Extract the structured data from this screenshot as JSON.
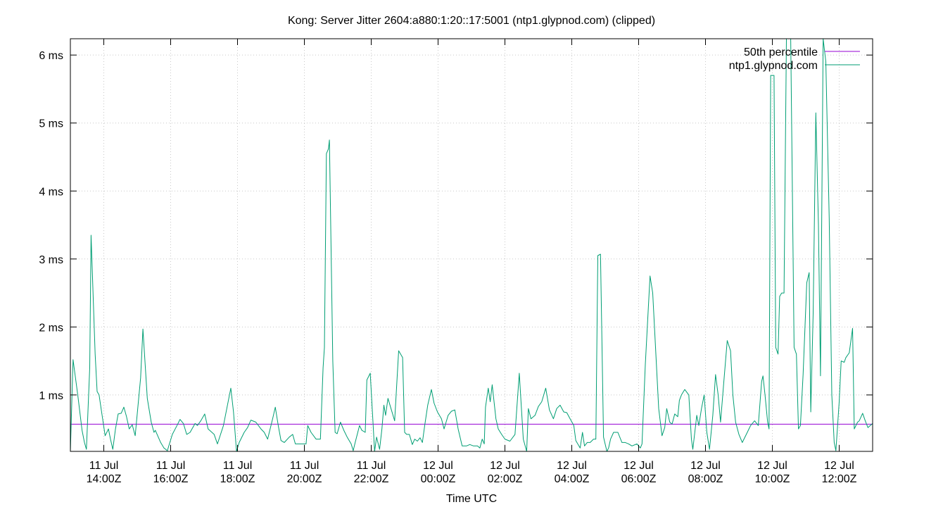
{
  "colors": {
    "median": "#9400d3",
    "series": "#009e73",
    "grid": "#c8c8c8",
    "axis": "#000000"
  },
  "chart_data": {
    "type": "line",
    "title": "Kong: Server Jitter 2604:a880:1:20::17:5001 (ntp1.glypnod.com) (clipped)",
    "xlabel": "Time UTC",
    "ylabel": "",
    "x_unit": "hours since 11 Jul 13:00Z",
    "xlim": [
      0,
      24
    ],
    "ylim": [
      0.17,
      6.24
    ],
    "grid": true,
    "legend_position": "top-right",
    "y_ticks": [
      {
        "value": 1,
        "label": "1 ms"
      },
      {
        "value": 2,
        "label": "2 ms"
      },
      {
        "value": 3,
        "label": "3 ms"
      },
      {
        "value": 4,
        "label": "4 ms"
      },
      {
        "value": 5,
        "label": "5 ms"
      },
      {
        "value": 6,
        "label": "6 ms"
      }
    ],
    "x_ticks": [
      {
        "value": 1,
        "line1": "11 Jul",
        "line2": "14:00Z"
      },
      {
        "value": 3,
        "line1": "11 Jul",
        "line2": "16:00Z"
      },
      {
        "value": 5,
        "line1": "11 Jul",
        "line2": "18:00Z"
      },
      {
        "value": 7,
        "line1": "11 Jul",
        "line2": "20:00Z"
      },
      {
        "value": 9,
        "line1": "11 Jul",
        "line2": "22:00Z"
      },
      {
        "value": 11,
        "line1": "12 Jul",
        "line2": "00:00Z"
      },
      {
        "value": 13,
        "line1": "12 Jul",
        "line2": "02:00Z"
      },
      {
        "value": 15,
        "line1": "12 Jul",
        "line2": "04:00Z"
      },
      {
        "value": 17,
        "line1": "12 Jul",
        "line2": "06:00Z"
      },
      {
        "value": 19,
        "line1": "12 Jul",
        "line2": "08:00Z"
      },
      {
        "value": 21,
        "line1": "12 Jul",
        "line2": "10:00Z"
      },
      {
        "value": 23,
        "line1": "12 Jul",
        "line2": "12:00Z"
      }
    ],
    "series": [
      {
        "name": "50th percentile",
        "values": [
          [
            0,
            0.57
          ],
          [
            24,
            0.57
          ]
        ]
      },
      {
        "name": "ntp1.glypnod.com",
        "values": [
          [
            0.0,
            0.17
          ],
          [
            0.08,
            1.52
          ],
          [
            0.22,
            1.0
          ],
          [
            0.35,
            0.48
          ],
          [
            0.42,
            0.3
          ],
          [
            0.48,
            0.2
          ],
          [
            0.58,
            1.4
          ],
          [
            0.62,
            3.35
          ],
          [
            0.74,
            1.6
          ],
          [
            0.8,
            1.05
          ],
          [
            0.86,
            1.0
          ],
          [
            0.95,
            0.7
          ],
          [
            1.04,
            0.4
          ],
          [
            1.14,
            0.5
          ],
          [
            1.2,
            0.35
          ],
          [
            1.27,
            0.2
          ],
          [
            1.35,
            0.5
          ],
          [
            1.43,
            0.72
          ],
          [
            1.52,
            0.73
          ],
          [
            1.6,
            0.82
          ],
          [
            1.68,
            0.68
          ],
          [
            1.76,
            0.5
          ],
          [
            1.85,
            0.56
          ],
          [
            1.94,
            0.4
          ],
          [
            2.1,
            1.25
          ],
          [
            2.17,
            1.97
          ],
          [
            2.3,
            0.95
          ],
          [
            2.42,
            0.6
          ],
          [
            2.5,
            0.45
          ],
          [
            2.54,
            0.48
          ],
          [
            2.7,
            0.3
          ],
          [
            2.8,
            0.22
          ],
          [
            2.9,
            0.18
          ],
          [
            3.05,
            0.42
          ],
          [
            3.2,
            0.56
          ],
          [
            3.28,
            0.64
          ],
          [
            3.38,
            0.58
          ],
          [
            3.48,
            0.42
          ],
          [
            3.58,
            0.45
          ],
          [
            3.73,
            0.58
          ],
          [
            3.8,
            0.55
          ],
          [
            3.9,
            0.62
          ],
          [
            4.02,
            0.72
          ],
          [
            4.12,
            0.5
          ],
          [
            4.3,
            0.42
          ],
          [
            4.4,
            0.28
          ],
          [
            4.58,
            0.55
          ],
          [
            4.8,
            1.1
          ],
          [
            4.88,
            0.75
          ],
          [
            4.97,
            0.17
          ],
          [
            5.05,
            0.3
          ],
          [
            5.2,
            0.45
          ],
          [
            5.3,
            0.52
          ],
          [
            5.4,
            0.63
          ],
          [
            5.55,
            0.6
          ],
          [
            5.7,
            0.5
          ],
          [
            5.8,
            0.45
          ],
          [
            5.9,
            0.35
          ],
          [
            6.05,
            0.65
          ],
          [
            6.13,
            0.82
          ],
          [
            6.22,
            0.55
          ],
          [
            6.3,
            0.33
          ],
          [
            6.4,
            0.3
          ],
          [
            6.55,
            0.38
          ],
          [
            6.65,
            0.42
          ],
          [
            6.73,
            0.28
          ],
          [
            6.9,
            0.28
          ],
          [
            7.05,
            0.28
          ],
          [
            7.1,
            0.55
          ],
          [
            7.2,
            0.45
          ],
          [
            7.35,
            0.35
          ],
          [
            7.48,
            0.35
          ],
          [
            7.56,
            1.4
          ],
          [
            7.6,
            1.7
          ],
          [
            7.66,
            4.55
          ],
          [
            7.72,
            4.62
          ],
          [
            7.75,
            4.75
          ],
          [
            7.85,
            1.5
          ],
          [
            7.92,
            0.45
          ],
          [
            7.98,
            0.43
          ],
          [
            8.08,
            0.6
          ],
          [
            8.18,
            0.48
          ],
          [
            8.28,
            0.38
          ],
          [
            8.4,
            0.28
          ],
          [
            8.46,
            0.18
          ],
          [
            8.52,
            0.3
          ],
          [
            8.65,
            0.55
          ],
          [
            8.72,
            0.48
          ],
          [
            8.82,
            0.45
          ],
          [
            8.87,
            1.22
          ],
          [
            8.97,
            1.32
          ],
          [
            9.05,
            0.62
          ],
          [
            9.1,
            0.17
          ],
          [
            9.16,
            0.38
          ],
          [
            9.25,
            0.2
          ],
          [
            9.32,
            0.5
          ],
          [
            9.38,
            0.85
          ],
          [
            9.43,
            0.7
          ],
          [
            9.5,
            0.95
          ],
          [
            9.58,
            0.82
          ],
          [
            9.7,
            0.62
          ],
          [
            9.82,
            1.65
          ],
          [
            9.94,
            1.55
          ],
          [
            10.0,
            0.45
          ],
          [
            10.06,
            0.42
          ],
          [
            10.14,
            0.42
          ],
          [
            10.23,
            0.27
          ],
          [
            10.3,
            0.35
          ],
          [
            10.38,
            0.32
          ],
          [
            10.46,
            0.37
          ],
          [
            10.53,
            0.3
          ],
          [
            10.6,
            0.55
          ],
          [
            10.69,
            0.85
          ],
          [
            10.8,
            1.08
          ],
          [
            10.88,
            0.88
          ],
          [
            10.98,
            0.75
          ],
          [
            11.1,
            0.65
          ],
          [
            11.18,
            0.5
          ],
          [
            11.3,
            0.7
          ],
          [
            11.4,
            0.76
          ],
          [
            11.5,
            0.78
          ],
          [
            11.6,
            0.5
          ],
          [
            11.72,
            0.25
          ],
          [
            11.85,
            0.25
          ],
          [
            11.95,
            0.27
          ],
          [
            12.06,
            0.25
          ],
          [
            12.18,
            0.25
          ],
          [
            12.25,
            0.22
          ],
          [
            12.32,
            0.35
          ],
          [
            12.38,
            0.28
          ],
          [
            12.42,
            0.82
          ],
          [
            12.5,
            1.1
          ],
          [
            12.56,
            0.9
          ],
          [
            12.62,
            1.15
          ],
          [
            12.73,
            0.65
          ],
          [
            12.8,
            0.5
          ],
          [
            12.9,
            0.42
          ],
          [
            13.0,
            0.35
          ],
          [
            13.15,
            0.32
          ],
          [
            13.3,
            0.42
          ],
          [
            13.43,
            1.32
          ],
          [
            13.55,
            0.35
          ],
          [
            13.65,
            0.17
          ],
          [
            13.7,
            0.8
          ],
          [
            13.78,
            0.65
          ],
          [
            13.9,
            0.7
          ],
          [
            14.0,
            0.83
          ],
          [
            14.1,
            0.9
          ],
          [
            14.22,
            1.1
          ],
          [
            14.33,
            0.78
          ],
          [
            14.45,
            0.65
          ],
          [
            14.55,
            0.8
          ],
          [
            14.65,
            0.85
          ],
          [
            14.76,
            0.75
          ],
          [
            14.85,
            0.74
          ],
          [
            14.95,
            0.65
          ],
          [
            15.06,
            0.55
          ],
          [
            15.12,
            0.33
          ],
          [
            15.25,
            0.22
          ],
          [
            15.32,
            0.45
          ],
          [
            15.38,
            0.25
          ],
          [
            15.46,
            0.3
          ],
          [
            15.55,
            0.3
          ],
          [
            15.65,
            0.35
          ],
          [
            15.72,
            0.35
          ],
          [
            15.78,
            3.05
          ],
          [
            15.86,
            3.07
          ],
          [
            15.95,
            0.38
          ],
          [
            16.05,
            0.17
          ],
          [
            16.1,
            0.22
          ],
          [
            16.16,
            0.35
          ],
          [
            16.25,
            0.45
          ],
          [
            16.38,
            0.45
          ],
          [
            16.5,
            0.3
          ],
          [
            16.6,
            0.3
          ],
          [
            16.7,
            0.28
          ],
          [
            16.8,
            0.25
          ],
          [
            16.95,
            0.28
          ],
          [
            17.05,
            0.22
          ],
          [
            17.1,
            0.28
          ],
          [
            17.2,
            1.45
          ],
          [
            17.34,
            2.75
          ],
          [
            17.42,
            2.5
          ],
          [
            17.6,
            0.8
          ],
          [
            17.7,
            0.4
          ],
          [
            17.78,
            0.52
          ],
          [
            17.84,
            0.8
          ],
          [
            17.93,
            0.6
          ],
          [
            18.0,
            0.57
          ],
          [
            18.08,
            0.72
          ],
          [
            18.17,
            0.68
          ],
          [
            18.22,
            0.92
          ],
          [
            18.28,
            1.0
          ],
          [
            18.38,
            1.08
          ],
          [
            18.5,
            1.0
          ],
          [
            18.58,
            0.35
          ],
          [
            18.62,
            0.2
          ],
          [
            18.68,
            0.45
          ],
          [
            18.74,
            0.7
          ],
          [
            18.8,
            0.55
          ],
          [
            18.88,
            0.8
          ],
          [
            18.96,
            1.0
          ],
          [
            19.04,
            0.45
          ],
          [
            19.12,
            0.2
          ],
          [
            19.22,
            0.7
          ],
          [
            19.3,
            1.3
          ],
          [
            19.38,
            1.0
          ],
          [
            19.45,
            0.6
          ],
          [
            19.55,
            1.2
          ],
          [
            19.65,
            1.8
          ],
          [
            19.75,
            1.65
          ],
          [
            19.82,
            1.0
          ],
          [
            19.9,
            0.6
          ],
          [
            20.0,
            0.42
          ],
          [
            20.1,
            0.3
          ],
          [
            20.25,
            0.45
          ],
          [
            20.35,
            0.55
          ],
          [
            20.47,
            0.62
          ],
          [
            20.58,
            0.55
          ],
          [
            20.68,
            1.2
          ],
          [
            20.72,
            1.28
          ],
          [
            20.78,
            1.0
          ],
          [
            20.86,
            0.6
          ],
          [
            20.9,
            0.5
          ],
          [
            20.95,
            5.7
          ],
          [
            21.05,
            5.7
          ],
          [
            21.1,
            1.7
          ],
          [
            21.17,
            1.6
          ],
          [
            21.22,
            2.45
          ],
          [
            21.28,
            2.5
          ],
          [
            21.35,
            2.5
          ],
          [
            21.42,
            6.24
          ],
          [
            21.55,
            6.24
          ],
          [
            21.65,
            1.7
          ],
          [
            21.72,
            1.6
          ],
          [
            21.78,
            0.5
          ],
          [
            21.84,
            0.55
          ],
          [
            21.92,
            1.3
          ],
          [
            22.03,
            2.65
          ],
          [
            22.1,
            2.8
          ],
          [
            22.15,
            0.75
          ],
          [
            22.22,
            2.2
          ],
          [
            22.3,
            5.15
          ],
          [
            22.38,
            3.5
          ],
          [
            22.44,
            1.28
          ],
          [
            22.52,
            6.24
          ],
          [
            22.6,
            5.9
          ],
          [
            22.7,
            3.6
          ],
          [
            22.78,
            1.0
          ],
          [
            22.85,
            0.3
          ],
          [
            22.9,
            0.18
          ],
          [
            23.0,
            0.9
          ],
          [
            23.06,
            1.5
          ],
          [
            23.15,
            1.48
          ],
          [
            23.2,
            1.55
          ],
          [
            23.3,
            1.62
          ],
          [
            23.4,
            1.98
          ],
          [
            23.45,
            0.5
          ],
          [
            23.55,
            0.6
          ],
          [
            23.6,
            0.62
          ],
          [
            23.7,
            0.73
          ],
          [
            23.78,
            0.62
          ],
          [
            23.86,
            0.52
          ],
          [
            24.0,
            0.58
          ]
        ]
      }
    ]
  }
}
